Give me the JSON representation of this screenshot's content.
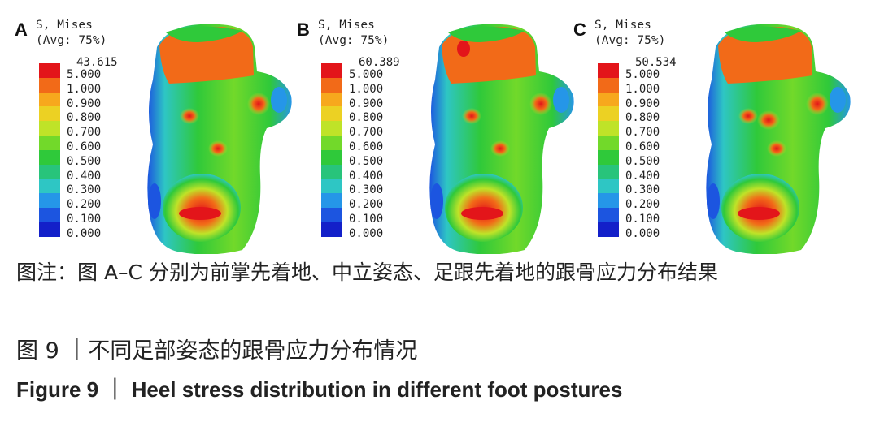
{
  "panels": [
    {
      "letter": "A",
      "title_line1": "S, Mises",
      "title_line2": "(Avg: 75%)",
      "max": "43.615"
    },
    {
      "letter": "B",
      "title_line1": "S, Mises",
      "title_line2": "(Avg: 75%)",
      "max": "60.389"
    },
    {
      "letter": "C",
      "title_line1": "S, Mises",
      "title_line2": "(Avg: 75%)",
      "max": "50.534"
    }
  ],
  "legend_levels": [
    "5.000",
    "1.000",
    "0.900",
    "0.800",
    "0.700",
    "0.600",
    "0.500",
    "0.400",
    "0.300",
    "0.200",
    "0.100",
    "0.000"
  ],
  "legend_colors": [
    "#e3151a",
    "#f26a18",
    "#f7a81d",
    "#ecd123",
    "#bfe328",
    "#72d92a",
    "#2fc93a",
    "#28c47b",
    "#2ec6c4",
    "#2596e8",
    "#1c55e0",
    "#1320c9"
  ],
  "captions": {
    "note": "图注：图 A–C 分别为前掌先着地、中立姿态、足跟先着地的跟骨应力分布结果",
    "figure_zh": "图 9 ｜不同足部姿态的跟骨应力分布情况",
    "figure_en": "Figure 9 ｜ Heel stress distribution in different foot postures"
  }
}
